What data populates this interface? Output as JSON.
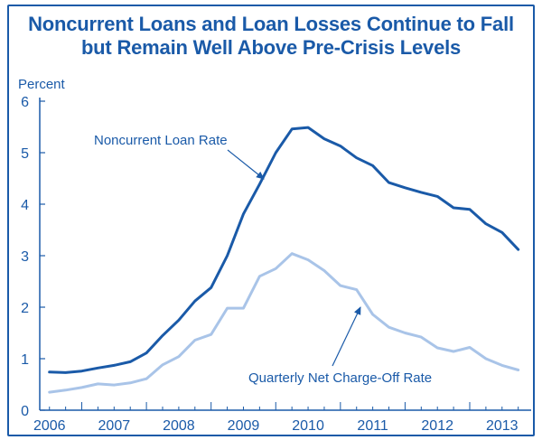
{
  "chart_data": {
    "type": "line",
    "title_line1": "Noncurrent Loans and Loan Losses Continue to Fall",
    "title_line2": "but Remain Well Above Pre-Crisis Levels",
    "ylabel": "Percent",
    "xlabel": "",
    "ylim": [
      0,
      6
    ],
    "xlim": [
      2005.85,
      2013.45
    ],
    "y_ticks": [
      0,
      1,
      2,
      3,
      4,
      5,
      6
    ],
    "x_ticks": [
      "2006",
      "2007",
      "2008",
      "2009",
      "2010",
      "2011",
      "2012",
      "2013"
    ],
    "x_tick_values": [
      2006,
      2007,
      2008,
      2009,
      2010,
      2011,
      2012,
      2013
    ],
    "grid": false,
    "legend": "none",
    "annotations": [
      {
        "text": "Noncurrent Loan Rate",
        "series": 0
      },
      {
        "text": "Quarterly Net Charge-Off Rate",
        "series": 1
      }
    ],
    "series": [
      {
        "name": "Noncurrent Loan Rate",
        "color": "#1a5aa8",
        "points": [
          [
            2006.0,
            0.74
          ],
          [
            2006.25,
            0.73
          ],
          [
            2006.5,
            0.76
          ],
          [
            2006.75,
            0.82
          ],
          [
            2007.0,
            0.87
          ],
          [
            2007.25,
            0.94
          ],
          [
            2007.5,
            1.11
          ],
          [
            2007.75,
            1.45
          ],
          [
            2008.0,
            1.75
          ],
          [
            2008.25,
            2.12
          ],
          [
            2008.5,
            2.38
          ],
          [
            2008.75,
            3.0
          ],
          [
            2009.0,
            3.81
          ],
          [
            2009.25,
            4.39
          ],
          [
            2009.5,
            5.0
          ],
          [
            2009.75,
            5.46
          ],
          [
            2010.0,
            5.49
          ],
          [
            2010.25,
            5.27
          ],
          [
            2010.5,
            5.13
          ],
          [
            2010.75,
            4.9
          ],
          [
            2011.0,
            4.75
          ],
          [
            2011.25,
            4.42
          ],
          [
            2011.5,
            4.32
          ],
          [
            2011.75,
            4.23
          ],
          [
            2012.0,
            4.15
          ],
          [
            2012.25,
            3.93
          ],
          [
            2012.5,
            3.9
          ],
          [
            2012.75,
            3.62
          ],
          [
            2013.0,
            3.45
          ],
          [
            2013.25,
            3.12
          ]
        ]
      },
      {
        "name": "Quarterly Net Charge-Off Rate",
        "color": "#a9c4e8",
        "points": [
          [
            2006.0,
            0.35
          ],
          [
            2006.25,
            0.39
          ],
          [
            2006.5,
            0.44
          ],
          [
            2006.75,
            0.51
          ],
          [
            2007.0,
            0.49
          ],
          [
            2007.25,
            0.53
          ],
          [
            2007.5,
            0.61
          ],
          [
            2007.75,
            0.88
          ],
          [
            2008.0,
            1.04
          ],
          [
            2008.25,
            1.36
          ],
          [
            2008.5,
            1.47
          ],
          [
            2008.75,
            1.98
          ],
          [
            2009.0,
            1.98
          ],
          [
            2009.25,
            2.6
          ],
          [
            2009.5,
            2.75
          ],
          [
            2009.75,
            3.04
          ],
          [
            2010.0,
            2.92
          ],
          [
            2010.25,
            2.71
          ],
          [
            2010.5,
            2.42
          ],
          [
            2010.75,
            2.34
          ],
          [
            2011.0,
            1.86
          ],
          [
            2011.25,
            1.61
          ],
          [
            2011.5,
            1.5
          ],
          [
            2011.75,
            1.42
          ],
          [
            2012.0,
            1.21
          ],
          [
            2012.25,
            1.14
          ],
          [
            2012.5,
            1.22
          ],
          [
            2012.75,
            1.0
          ],
          [
            2013.0,
            0.87
          ],
          [
            2013.25,
            0.78
          ]
        ]
      }
    ]
  }
}
